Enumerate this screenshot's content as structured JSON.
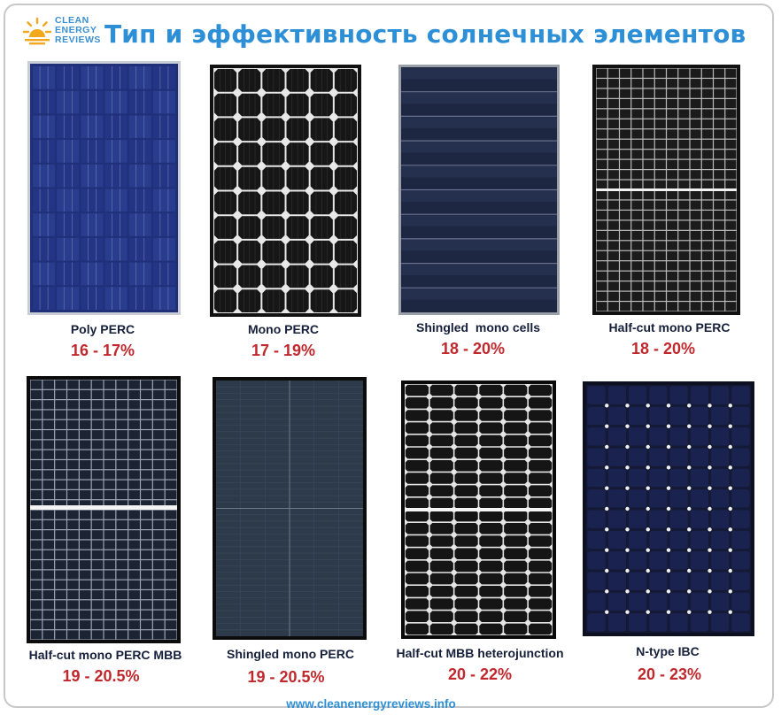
{
  "logo": {
    "line1": "CLEAN",
    "line2": "ENERGY",
    "line3": "REVIEWS",
    "sun_color": "#f2a81d",
    "text_color": "#3a8fd0"
  },
  "title": "Тип и эффективность солнечных элементов",
  "panels": [
    {
      "name": "Poly PERC",
      "efficiency": "16 - 17%",
      "icon": "poly-perc-panel-icon"
    },
    {
      "name": "Mono PERC",
      "efficiency": "17 - 19%",
      "icon": "mono-perc-panel-icon"
    },
    {
      "name": "Shingled  mono cells",
      "efficiency": "18 - 20%",
      "icon": "shingled-mono-cells-panel-icon"
    },
    {
      "name": "Half-cut mono PERC",
      "efficiency": "18 - 20%",
      "icon": "half-cut-mono-perc-panel-icon"
    },
    {
      "name": "Half-cut mono PERC MBB",
      "efficiency": "19 - 20.5%",
      "icon": "half-cut-mono-perc-mbb-panel-icon"
    },
    {
      "name": "Shingled mono PERC",
      "efficiency": "19 - 20.5%",
      "icon": "shingled-mono-perc-panel-icon"
    },
    {
      "name": "Half-cut MBB heterojunction",
      "efficiency": "20 - 22%",
      "icon": "half-cut-mbb-heterojunction-panel-icon"
    },
    {
      "name": "N-type IBC",
      "efficiency": "20 - 23%",
      "icon": "n-type-ibc-panel-icon"
    }
  ],
  "footer": "www.cleanenergyreviews.info",
  "colors": {
    "title": "#2d8fd6",
    "label": "#16203a",
    "efficiency": "#c0282d"
  }
}
